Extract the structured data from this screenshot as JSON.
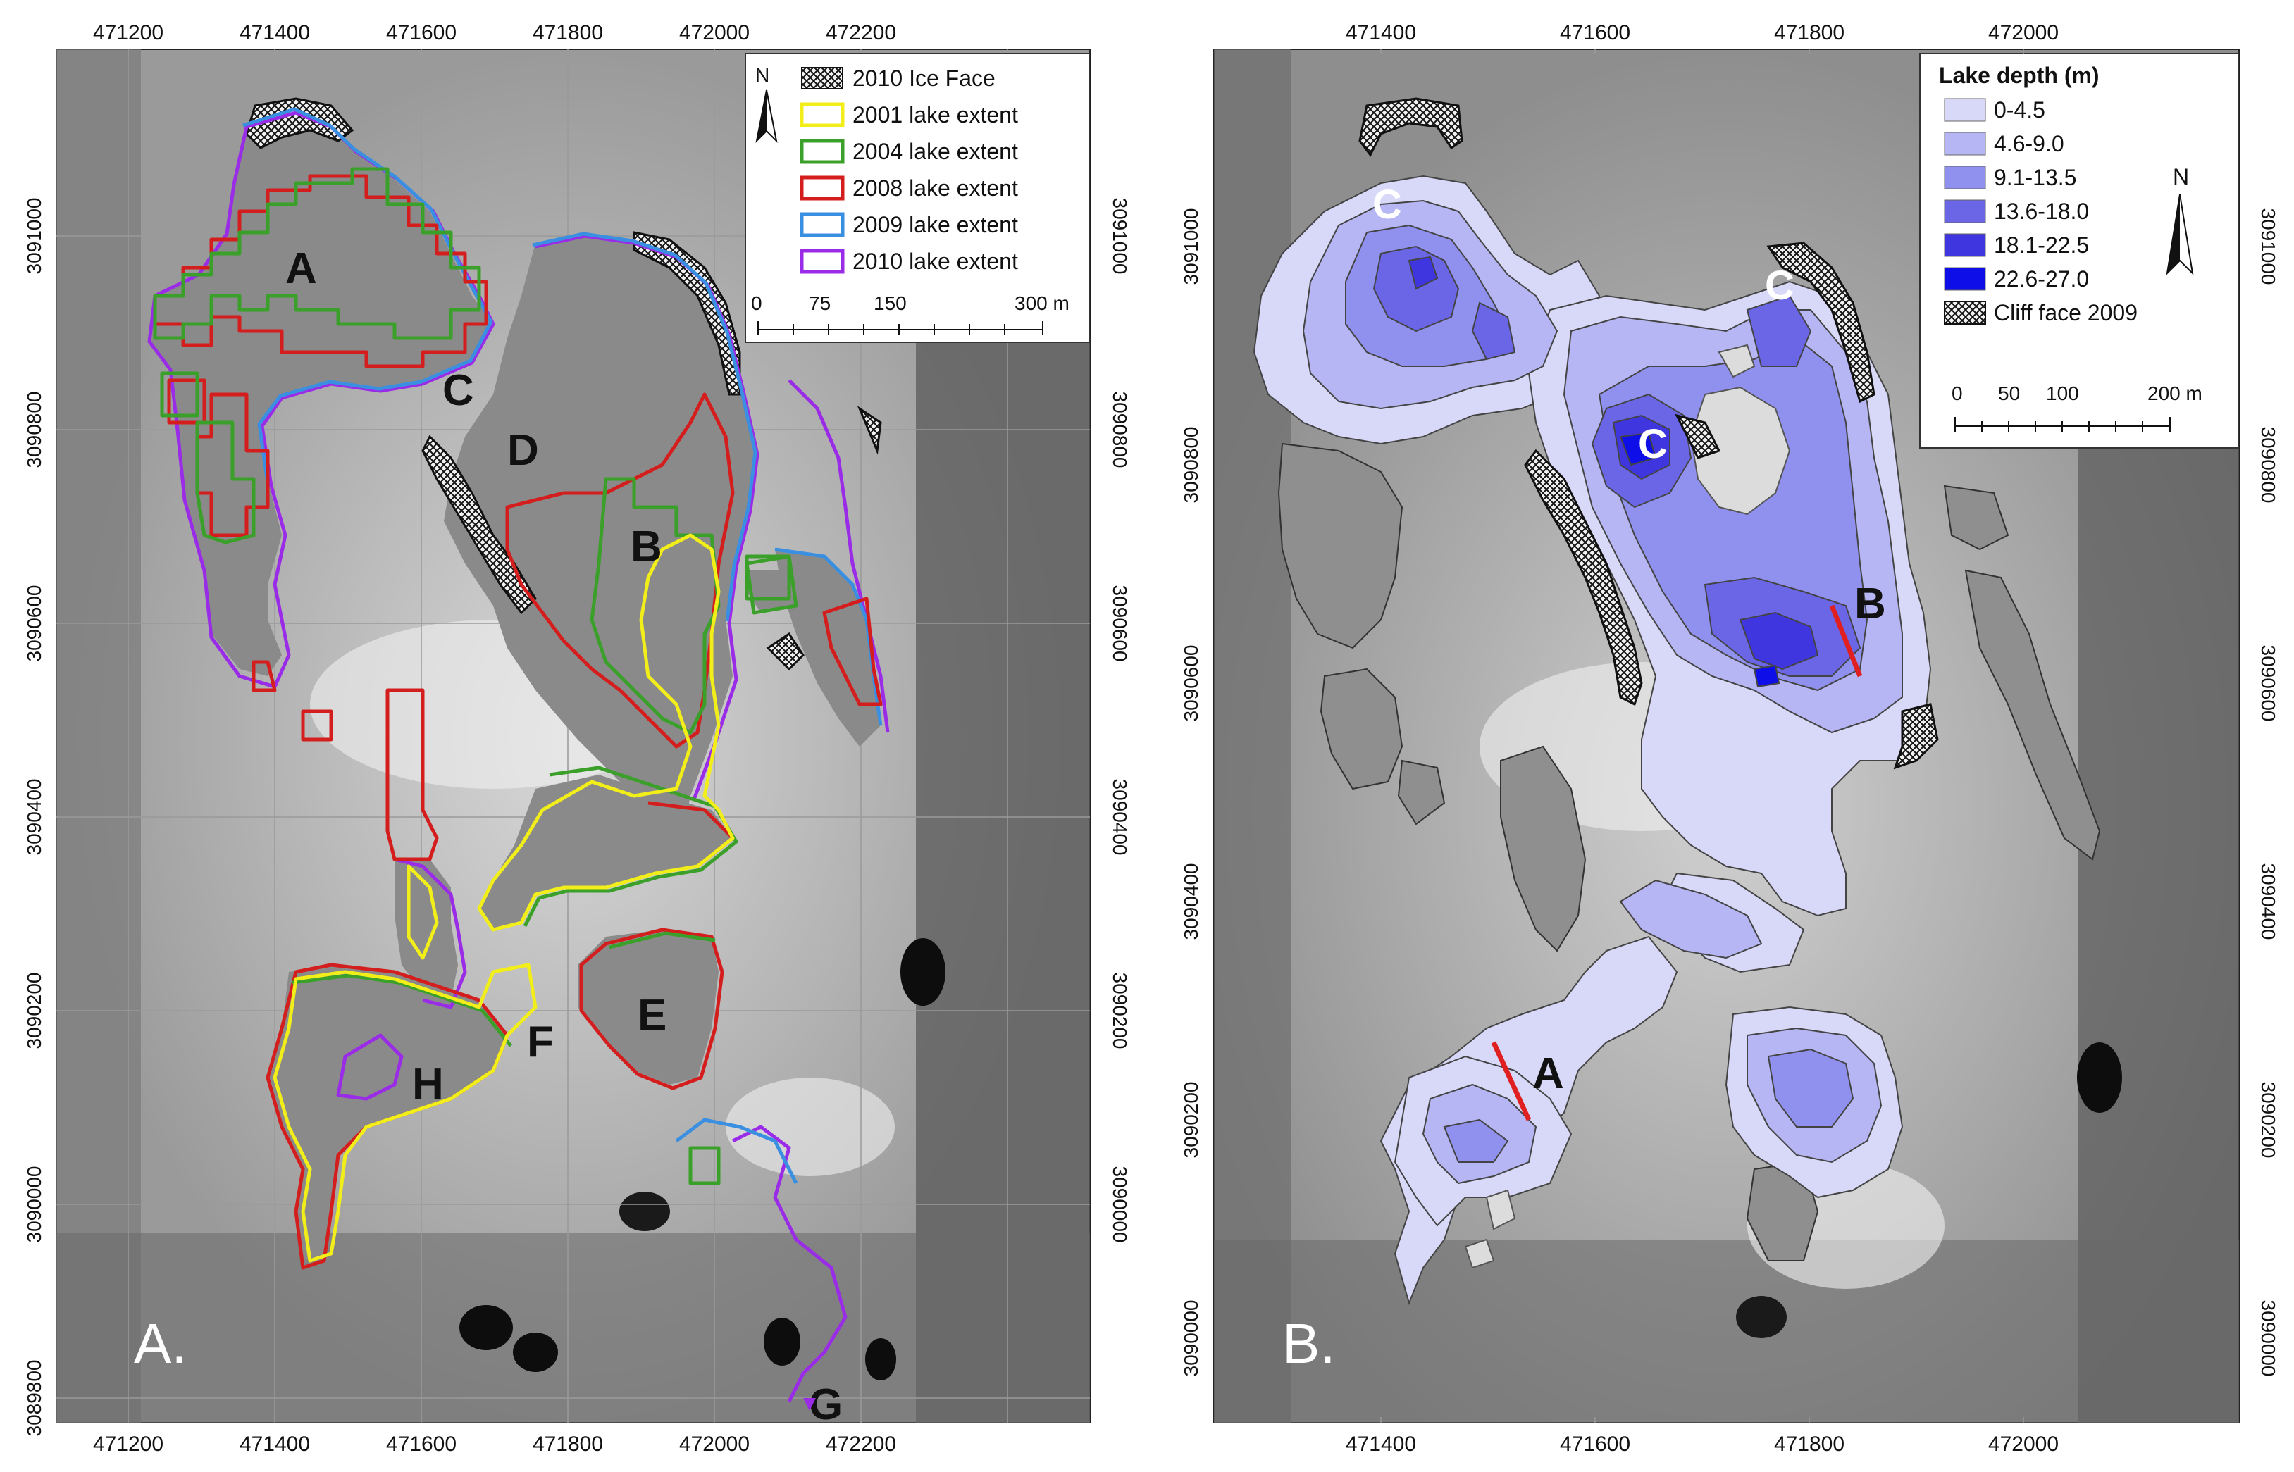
{
  "panel_a": {
    "x_ticks": [
      "471200",
      "471400",
      "471600",
      "471800",
      "472000",
      "472200"
    ],
    "y_ticks": [
      "3091000",
      "3090800",
      "3090600",
      "3090400",
      "3090200",
      "3090000",
      "3089800"
    ],
    "north": "N",
    "legend": [
      {
        "label": "2010 Ice Face",
        "color": "hatch"
      },
      {
        "label": "2001 lake extent",
        "color": "#f2ee1a"
      },
      {
        "label": "2004 lake extent",
        "color": "#3aa02a"
      },
      {
        "label": "2008 lake extent",
        "color": "#d41e1e"
      },
      {
        "label": "2009 lake extent",
        "color": "#3a8fe0"
      },
      {
        "label": "2010 lake extent",
        "color": "#9a2ce8"
      }
    ],
    "scale": [
      "0",
      "75",
      "150",
      "300 m"
    ],
    "area_labels": [
      "A",
      "B",
      "C",
      "D",
      "E",
      "F",
      "G",
      "H"
    ],
    "panel_label": "A."
  },
  "panel_b": {
    "x_ticks": [
      "471400",
      "471600",
      "471800",
      "472000"
    ],
    "y_ticks": [
      "3091000",
      "3090800",
      "3090600",
      "3090400",
      "3090200",
      "3090000"
    ],
    "north": "N",
    "legend_title": "Lake depth (m)",
    "legend": [
      {
        "label": "0-4.5",
        "color": "#d8d8f8"
      },
      {
        "label": "4.6-9.0",
        "color": "#b6b6f4"
      },
      {
        "label": "9.1-13.5",
        "color": "#9090ee"
      },
      {
        "label": "13.6-18.0",
        "color": "#6a66e6"
      },
      {
        "label": "18.1-22.5",
        "color": "#3f36e0"
      },
      {
        "label": "22.6-27.0",
        "color": "#0e0ee8"
      },
      {
        "label": "Cliff face 2009",
        "color": "hatch"
      }
    ],
    "scale": [
      "0",
      "50",
      "100",
      "200 m"
    ],
    "area_labels": [
      "C",
      "C",
      "C",
      "B",
      "A"
    ],
    "panel_label": "B."
  }
}
